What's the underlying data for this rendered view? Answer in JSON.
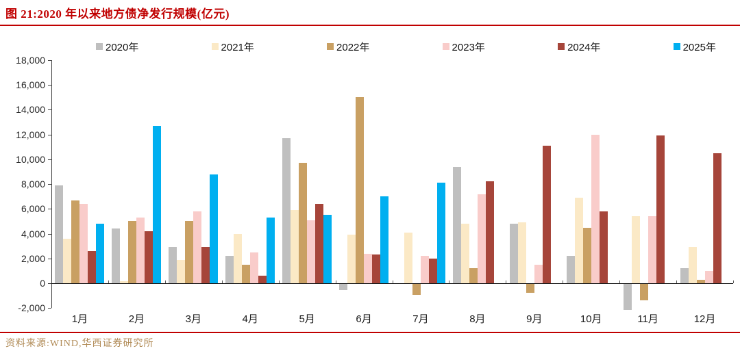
{
  "header": {
    "title": "图 21:2020 年以来地方债净发行规模(亿元)"
  },
  "footer": {
    "source": "资料来源:WIND,华西证券研究所"
  },
  "colors": {
    "title_red": "#c00000",
    "rule_red": "#c00000",
    "source_gold": "#b08a55",
    "axis": "#404040"
  },
  "chart_data": {
    "type": "bar",
    "title": "2020 年以来地方债净发行规模(亿元)",
    "unit": "亿元",
    "xlabel": "",
    "ylabel": "",
    "ylim": [
      -2000,
      18000
    ],
    "ytick_step": 2000,
    "grid": false,
    "legend_position": "top",
    "categories": [
      "1月",
      "2月",
      "3月",
      "4月",
      "5月",
      "6月",
      "7月",
      "8月",
      "9月",
      "10月",
      "11月",
      "12月"
    ],
    "yticks": [
      {
        "label": "18,000",
        "value": 18000
      },
      {
        "label": "16,000",
        "value": 16000
      },
      {
        "label": "14,000",
        "value": 14000
      },
      {
        "label": "12,000",
        "value": 12000
      },
      {
        "label": "10,000",
        "value": 10000
      },
      {
        "label": "8,000",
        "value": 8000
      },
      {
        "label": "6,000",
        "value": 6000
      },
      {
        "label": "4,000",
        "value": 4000
      },
      {
        "label": "2,000",
        "value": 2000
      },
      {
        "label": "0",
        "value": 0
      },
      {
        "label": "-2,000",
        "value": -2000
      }
    ],
    "series": [
      {
        "name": "2020年",
        "color": "#BFBFBF",
        "values": [
          7900,
          4400,
          2900,
          2200,
          11700,
          -500,
          0,
          9400,
          4800,
          2200,
          -2100,
          1200
        ]
      },
      {
        "name": "2021年",
        "color": "#FBE9C6",
        "values": [
          3600,
          150,
          1900,
          4000,
          5900,
          3900,
          4100,
          4800,
          4900,
          6900,
          5400,
          2900
        ]
      },
      {
        "name": "2022年",
        "color": "#C9A063",
        "values": [
          6700,
          5000,
          5000,
          1500,
          9700,
          15000,
          -900,
          1200,
          -700,
          4500,
          -1300,
          300
        ]
      },
      {
        "name": "2023年",
        "color": "#F9CCCA",
        "values": [
          6400,
          5300,
          5800,
          2500,
          5100,
          2400,
          2200,
          7200,
          1500,
          12000,
          5400,
          1000
        ]
      },
      {
        "name": "2024年",
        "color": "#A6453A",
        "values": [
          2600,
          4200,
          2900,
          600,
          6400,
          2300,
          2000,
          8200,
          11100,
          5800,
          11900,
          10500
        ]
      },
      {
        "name": "2025年",
        "color": "#00AFF0",
        "values": [
          4800,
          12700,
          8800,
          5300,
          5500,
          7000,
          8100,
          null,
          null,
          null,
          null,
          null
        ]
      }
    ]
  }
}
